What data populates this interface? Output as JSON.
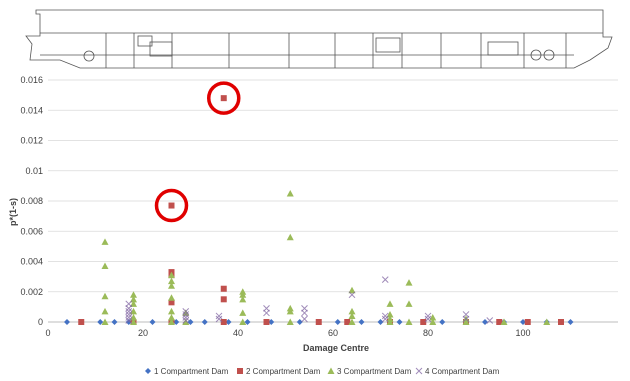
{
  "chart_data": {
    "type": "scatter",
    "title": "",
    "xlabel": "Damage Centre",
    "ylabel": "p*(1-s)",
    "xlim": [
      0,
      120
    ],
    "ylim": [
      0,
      0.016
    ],
    "x_ticks": [
      0,
      20,
      40,
      60,
      80,
      100
    ],
    "y_ticks": [
      "0",
      "0.002",
      "0.004",
      "0.006",
      "0.008",
      "0.01",
      "0.012",
      "0.014",
      "0.016"
    ],
    "grid": "horizontal",
    "legend_position": "bottom",
    "series": [
      {
        "name": "1 Compartment Dam",
        "color": "#4472c4",
        "marker": "diamond",
        "points": [
          [
            4,
            0
          ],
          [
            11,
            0
          ],
          [
            14,
            0
          ],
          [
            17,
            0
          ],
          [
            22,
            0
          ],
          [
            27,
            0
          ],
          [
            30,
            0
          ],
          [
            33,
            0
          ],
          [
            38,
            0
          ],
          [
            42,
            0
          ],
          [
            47,
            0
          ],
          [
            53,
            0
          ],
          [
            57,
            0
          ],
          [
            61,
            0
          ],
          [
            66,
            0
          ],
          [
            70,
            0
          ],
          [
            74,
            0
          ],
          [
            79,
            0
          ],
          [
            83,
            0
          ],
          [
            88,
            0
          ],
          [
            92,
            0
          ],
          [
            96,
            0
          ],
          [
            100,
            0
          ],
          [
            105,
            0
          ],
          [
            110,
            0
          ]
        ]
      },
      {
        "name": "2 Compartment Dam",
        "color": "#c0504d",
        "marker": "square",
        "points": [
          [
            7,
            0
          ],
          [
            18,
            0
          ],
          [
            26,
            0.0033
          ],
          [
            26,
            0.0031
          ],
          [
            26,
            0.0013
          ],
          [
            26,
            0
          ],
          [
            26,
            0.0077
          ],
          [
            37,
            0.0148
          ],
          [
            37,
            0.0022
          ],
          [
            37,
            0.0015
          ],
          [
            37,
            0
          ],
          [
            46,
            0
          ],
          [
            57,
            0
          ],
          [
            63,
            0
          ],
          [
            72,
            0
          ],
          [
            79,
            0
          ],
          [
            88,
            0
          ],
          [
            95,
            0
          ],
          [
            101,
            0
          ],
          [
            108,
            0
          ]
        ]
      },
      {
        "name": "3 Compartment Dam",
        "color": "#9bbb59",
        "marker": "triangle",
        "points": [
          [
            12,
            0.0053
          ],
          [
            12,
            0.0037
          ],
          [
            12,
            0.0017
          ],
          [
            12,
            0.0007
          ],
          [
            12,
            0
          ],
          [
            18,
            0.0018
          ],
          [
            18,
            0.0015
          ],
          [
            18,
            0.0012
          ],
          [
            18,
            0.0007
          ],
          [
            18,
            0.0003
          ],
          [
            18,
            0
          ],
          [
            26,
            0.0031
          ],
          [
            26,
            0.0027
          ],
          [
            26,
            0.0024
          ],
          [
            26,
            0.0016
          ],
          [
            26,
            0.0007
          ],
          [
            26,
            0.0003
          ],
          [
            26,
            0
          ],
          [
            29,
            0.0006
          ],
          [
            29,
            0
          ],
          [
            41,
            0.002
          ],
          [
            41,
            0.0018
          ],
          [
            41,
            0.0015
          ],
          [
            41,
            0.0006
          ],
          [
            41,
            0
          ],
          [
            51,
            0.0085
          ],
          [
            51,
            0.0056
          ],
          [
            51,
            0.0009
          ],
          [
            51,
            0.0007
          ],
          [
            51,
            0
          ],
          [
            64,
            0.0021
          ],
          [
            64,
            0.0007
          ],
          [
            64,
            0.0004
          ],
          [
            64,
            0
          ],
          [
            72,
            0.0012
          ],
          [
            72,
            0.0005
          ],
          [
            72,
            0.0002
          ],
          [
            72,
            0
          ],
          [
            76,
            0.0026
          ],
          [
            76,
            0.0012
          ],
          [
            76,
            0
          ],
          [
            81,
            0.0003
          ],
          [
            81,
            0
          ],
          [
            88,
            0.0002
          ],
          [
            88,
            0
          ],
          [
            96,
            0
          ],
          [
            105,
            0
          ]
        ]
      },
      {
        "name": "4 Compartment Dam",
        "color": "#8064a2",
        "marker": "x",
        "points": [
          [
            17,
            0.0012
          ],
          [
            17,
            0.0009
          ],
          [
            17,
            0.0007
          ],
          [
            17,
            0.0005
          ],
          [
            17,
            0.0003
          ],
          [
            17,
            0.0001
          ],
          [
            29,
            0.0007
          ],
          [
            29,
            0.0005
          ],
          [
            29,
            0.0003
          ],
          [
            29,
            0.0001
          ],
          [
            36,
            0.0004
          ],
          [
            36,
            0.0002
          ],
          [
            46,
            0.0009
          ],
          [
            46,
            0.0006
          ],
          [
            54,
            0.0009
          ],
          [
            54,
            0.0006
          ],
          [
            54,
            0.0002
          ],
          [
            64,
            0.0018
          ],
          [
            71,
            0.0028
          ],
          [
            71,
            0.0004
          ],
          [
            71,
            0.0002
          ],
          [
            80,
            0.0004
          ],
          [
            80,
            0.0002
          ],
          [
            88,
            0.0005
          ],
          [
            88,
            0.0002
          ],
          [
            93,
            0.0001
          ]
        ]
      }
    ],
    "highlighted_points": [
      {
        "series": "2 Compartment Dam",
        "x": 37,
        "y": 0.0148
      },
      {
        "series": "2 Compartment Dam",
        "x": 26,
        "y": 0.0077
      }
    ]
  },
  "ship_profile": {
    "icon": "ship-profile-drawing"
  }
}
